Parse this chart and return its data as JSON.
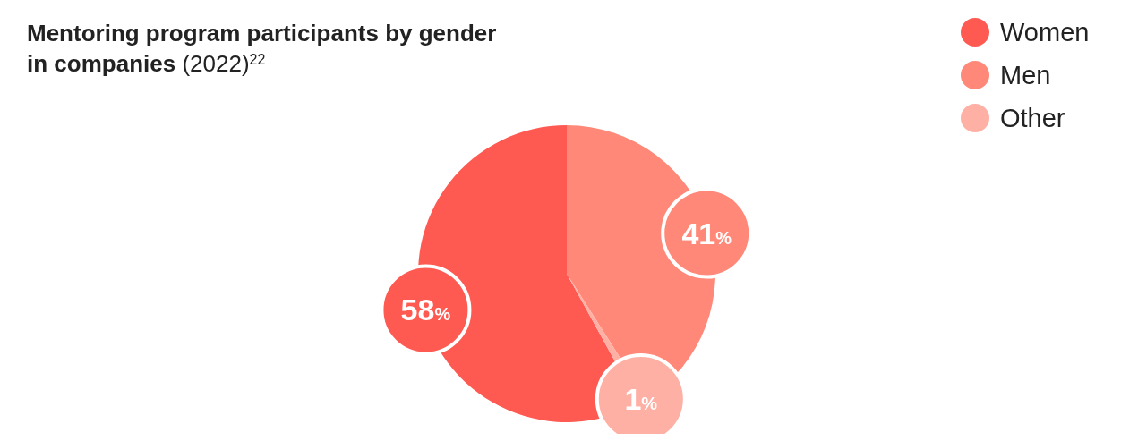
{
  "chart_data": {
    "type": "pie",
    "title": "Mentoring program participants by gender in companies (2022)$^{22}$",
    "categories": [
      "Women",
      "Men",
      "Other"
    ],
    "values": [
      58,
      41,
      1
    ],
    "colors": [
      "#ff5a52",
      "#ff8878",
      "#ffb0a5"
    ],
    "value_labels": [
      "58%",
      "41%",
      "1%"
    ],
    "legend": "top right"
  }
}
